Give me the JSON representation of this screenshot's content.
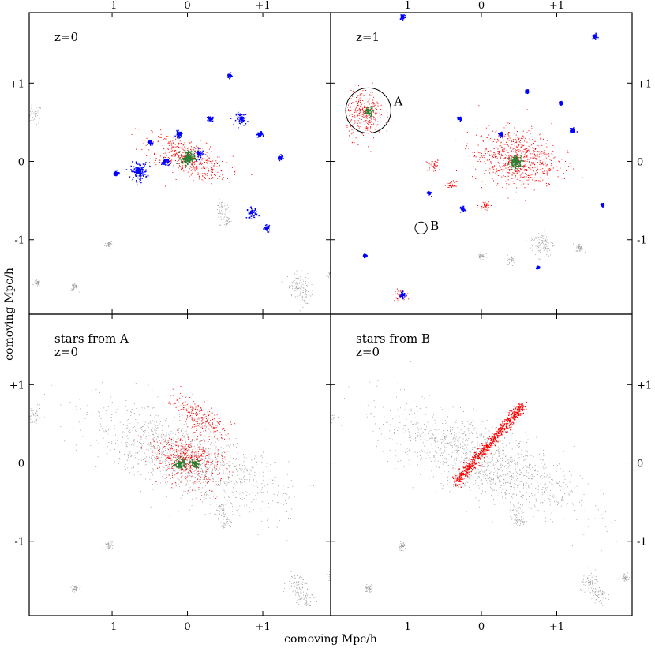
{
  "figure": {
    "x_axis_label": "comoving Mpc/h",
    "y_axis_label": "comoving Mpc/h"
  },
  "colors": {
    "dark_matter_background": "#9a9a9a",
    "stars_red": "#ff0000",
    "halo_blue": "#0000ff",
    "central_green": "#2e7d32",
    "frame": "#000000"
  },
  "chart_data": [
    {
      "type": "scatter",
      "panel": "top-left",
      "labels": [
        "z=0"
      ],
      "x_ticks": [
        "-1",
        "0",
        "+1"
      ],
      "y_ticks": [
        "+1",
        "0",
        "-1"
      ],
      "xlim": [
        -2.1,
        1.9
      ],
      "ylim": [
        -1.95,
        1.9
      ],
      "grid": false,
      "series": [
        {
          "color": "gray",
          "clumps": [
            [
              -2.05,
              0.6,
              0.12
            ],
            [
              0.45,
              -0.6,
              0.1
            ],
            [
              0.5,
              -0.75,
              0.08
            ],
            [
              -1.05,
              -1.05,
              0.05
            ],
            [
              1.45,
              -1.55,
              0.14
            ],
            [
              1.55,
              -1.7,
              0.12
            ],
            [
              -1.5,
              -1.6,
              0.05
            ],
            [
              1.9,
              -1.45,
              0.06
            ],
            [
              -2.0,
              -1.55,
              0.04
            ]
          ]
        },
        {
          "color": "red",
          "clumps": [
            [
              0.0,
              0.05,
              0.55,
              0.22,
              -20
            ]
          ]
        },
        {
          "color": "blue",
          "clumps": [
            [
              -0.65,
              -0.12,
              0.11
            ],
            [
              0.72,
              0.55,
              0.08
            ],
            [
              0.85,
              -0.65,
              0.07
            ],
            [
              0.15,
              0.1,
              0.06
            ],
            [
              -0.3,
              0.0,
              0.05
            ],
            [
              0.55,
              1.1,
              0.03
            ],
            [
              1.05,
              -0.85,
              0.035
            ],
            [
              1.22,
              0.05,
              0.03
            ],
            [
              -0.95,
              -0.15,
              0.035
            ],
            [
              -0.12,
              0.35,
              0.04
            ],
            [
              0.3,
              0.55,
              0.03
            ],
            [
              -0.5,
              0.25,
              0.03
            ],
            [
              0.95,
              0.35,
              0.035
            ]
          ]
        },
        {
          "color": "green",
          "clumps": [
            [
              0.0,
              0.05,
              0.09
            ]
          ]
        }
      ]
    },
    {
      "type": "scatter",
      "panel": "top-right",
      "labels": [
        "z=1"
      ],
      "markers": [
        {
          "name": "A",
          "x": -1.5,
          "y": 0.65,
          "r": 0.3
        },
        {
          "name": "B",
          "x": -0.8,
          "y": -0.85,
          "r": 0.08
        }
      ],
      "x_ticks": [
        "-1",
        "0",
        "+1"
      ],
      "y_ticks": [
        "+1",
        "0",
        "-1"
      ],
      "xlim": [
        -2.0,
        2.0
      ],
      "ylim": [
        -1.95,
        1.9
      ],
      "grid": false,
      "series": [
        {
          "color": "gray",
          "clumps": [
            [
              0.8,
              -1.05,
              0.16
            ],
            [
              0.4,
              -1.25,
              0.06
            ],
            [
              1.3,
              -1.1,
              0.05
            ],
            [
              0.0,
              -1.2,
              0.05
            ]
          ]
        },
        {
          "color": "red",
          "clumps": [
            [
              0.45,
              0.05,
              0.55,
              0.35,
              -5
            ],
            [
              -1.55,
              0.6,
              0.25,
              0.3,
              0
            ],
            [
              -0.65,
              -0.05,
              0.1,
              0.08,
              0
            ],
            [
              0.05,
              -0.55,
              0.08,
              0.06,
              0
            ],
            [
              -1.1,
              -1.7,
              0.08,
              0.06,
              0
            ],
            [
              -0.4,
              -0.3,
              0.06,
              0.05,
              0
            ]
          ]
        },
        {
          "color": "blue",
          "clumps": [
            [
              -1.05,
              1.85,
              0.03
            ],
            [
              1.5,
              1.6,
              0.03
            ],
            [
              0.25,
              0.35,
              0.03
            ],
            [
              -0.7,
              -0.4,
              0.025
            ],
            [
              1.2,
              0.4,
              0.03
            ],
            [
              -0.25,
              -0.6,
              0.03
            ],
            [
              0.75,
              -1.35,
              0.02
            ],
            [
              -1.05,
              -1.7,
              0.035
            ],
            [
              1.6,
              -0.55,
              0.02
            ],
            [
              -0.3,
              0.55,
              0.025
            ],
            [
              0.6,
              0.9,
              0.02
            ],
            [
              -1.55,
              -1.2,
              0.02
            ],
            [
              1.05,
              0.75,
              0.02
            ]
          ]
        },
        {
          "color": "green",
          "clumps": [
            [
              -1.5,
              0.65,
              0.06
            ],
            [
              0.45,
              0.0,
              0.08
            ]
          ]
        }
      ]
    },
    {
      "type": "scatter",
      "panel": "bottom-left",
      "labels": [
        "stars from A",
        "z=0"
      ],
      "x_ticks": [
        "-1",
        "0",
        "+1"
      ],
      "y_ticks": [
        "+1",
        "0",
        "-1"
      ],
      "xlim": [
        -2.1,
        1.9
      ],
      "ylim": [
        -1.95,
        1.9
      ],
      "grid": false,
      "series": [
        {
          "color": "gray",
          "clumps": [
            [
              0.0,
              0.05,
              1.35,
              0.45,
              -22
            ],
            [
              -2.05,
              0.6,
              0.12
            ],
            [
              0.45,
              -0.6,
              0.1
            ],
            [
              0.5,
              -0.75,
              0.08
            ],
            [
              -1.05,
              -1.05,
              0.05
            ],
            [
              1.45,
              -1.55,
              0.14
            ],
            [
              1.55,
              -1.7,
              0.12
            ],
            [
              -1.5,
              -1.6,
              0.05
            ],
            [
              1.9,
              -1.45,
              0.06
            ]
          ]
        },
        {
          "color": "red",
          "clumps": [
            [
              0.0,
              0.05,
              0.45,
              0.3,
              -20
            ],
            [
              0.15,
              0.6,
              0.4,
              0.15,
              -35
            ]
          ]
        },
        {
          "color": "green",
          "clumps": [
            [
              -0.1,
              0.0,
              0.07
            ],
            [
              0.1,
              0.0,
              0.06
            ]
          ]
        }
      ]
    },
    {
      "type": "scatter",
      "panel": "bottom-right",
      "labels": [
        "stars from B",
        "z=0"
      ],
      "x_ticks": [
        "-1",
        "0",
        "+1"
      ],
      "y_ticks": [
        "+1",
        "0",
        "-1"
      ],
      "xlim": [
        -2.0,
        2.0
      ],
      "ylim": [
        -1.95,
        1.9
      ],
      "grid": false,
      "series": [
        {
          "color": "gray",
          "clumps": [
            [
              0.0,
              0.05,
              1.35,
              0.45,
              -22
            ],
            [
              -2.05,
              0.6,
              0.12
            ],
            [
              0.45,
              -0.6,
              0.1
            ],
            [
              0.5,
              -0.75,
              0.08
            ],
            [
              -1.05,
              -1.05,
              0.05
            ],
            [
              1.45,
              -1.55,
              0.14
            ],
            [
              1.55,
              -1.7,
              0.12
            ],
            [
              -1.5,
              -1.6,
              0.05
            ],
            [
              1.9,
              -1.45,
              0.06
            ]
          ]
        },
        {
          "color": "red",
          "stream": {
            "from": [
              -0.35,
              -0.25
            ],
            "to": [
              0.55,
              0.75
            ],
            "width": 0.08
          }
        }
      ]
    }
  ]
}
